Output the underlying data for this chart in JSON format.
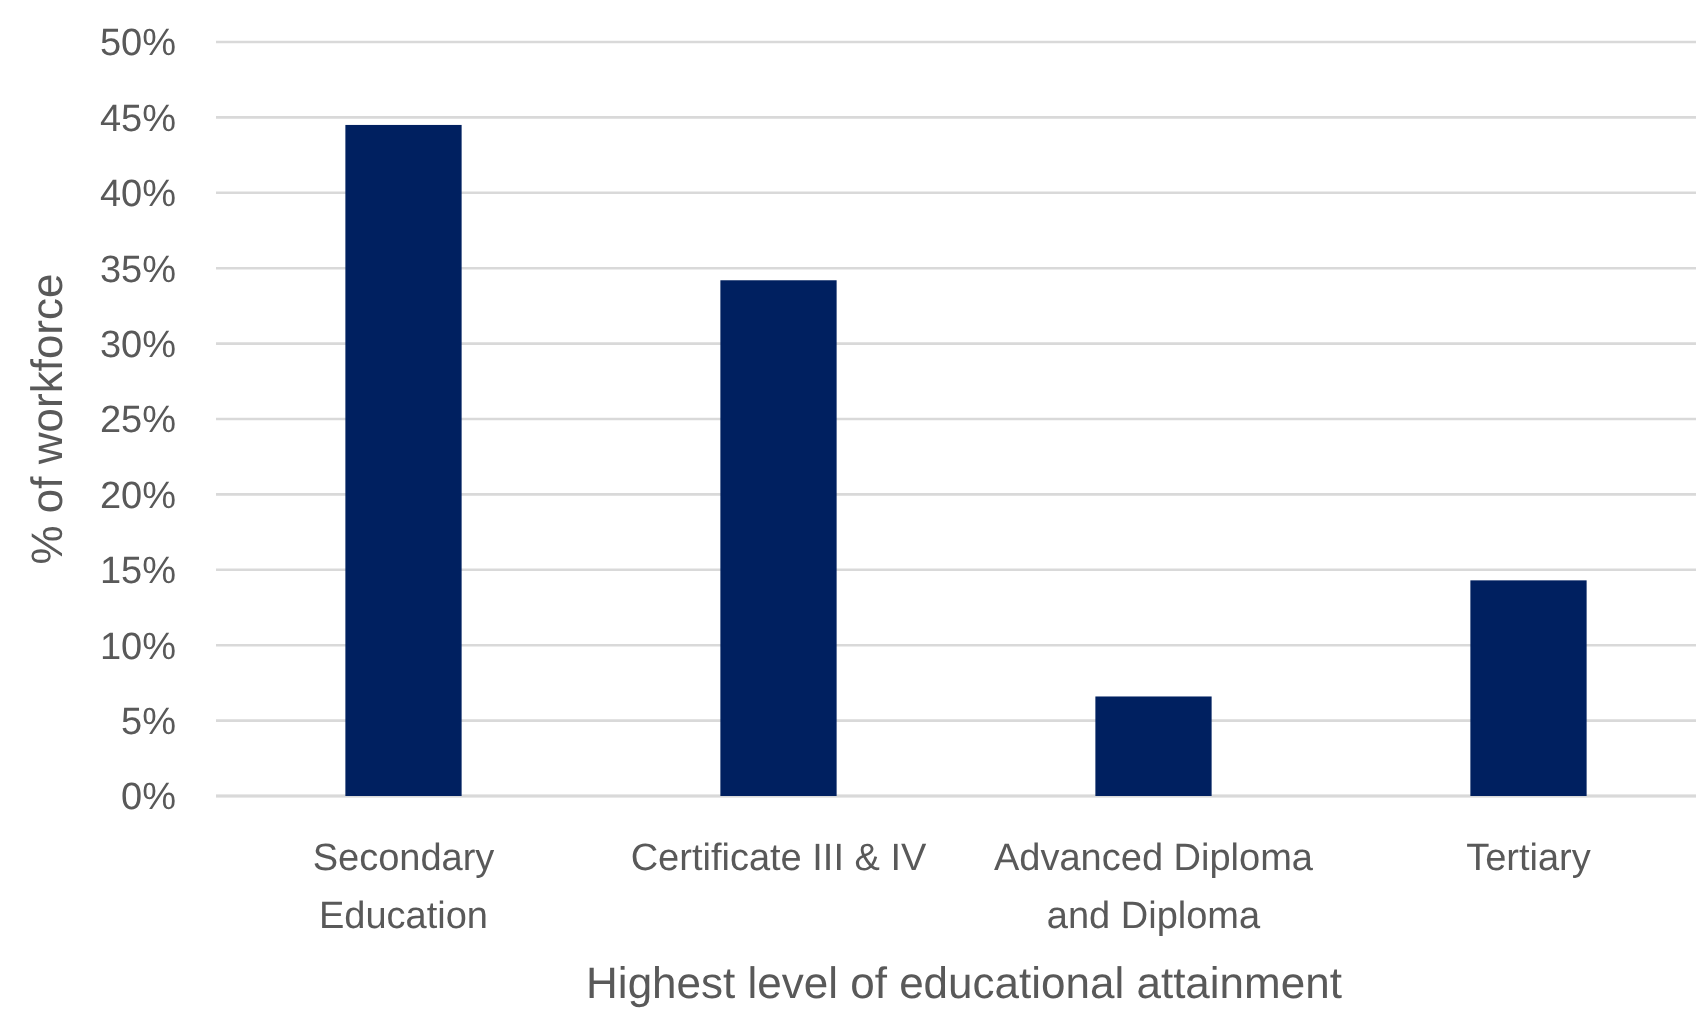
{
  "chart_data": {
    "type": "bar",
    "categories": [
      "Secondary Education",
      "Certificate III & IV",
      "Advanced Diploma and Diploma",
      "Tertiary"
    ],
    "values": [
      44.5,
      34.2,
      6.6,
      14.3
    ],
    "color": "#002060",
    "xlabel": "Highest level of educational attainment",
    "ylabel": "% of workforce",
    "ylim": [
      0,
      50
    ],
    "yticks": [
      {
        "value": 0,
        "label": "0%"
      },
      {
        "value": 5,
        "label": "5%"
      },
      {
        "value": 10,
        "label": "10%"
      },
      {
        "value": 15,
        "label": "15%"
      },
      {
        "value": 20,
        "label": "20%"
      },
      {
        "value": 25,
        "label": "25%"
      },
      {
        "value": 30,
        "label": "30%"
      },
      {
        "value": 35,
        "label": "35%"
      },
      {
        "value": 40,
        "label": "40%"
      },
      {
        "value": 45,
        "label": "45%"
      },
      {
        "value": 50,
        "label": "50%"
      }
    ],
    "grid": "y"
  }
}
